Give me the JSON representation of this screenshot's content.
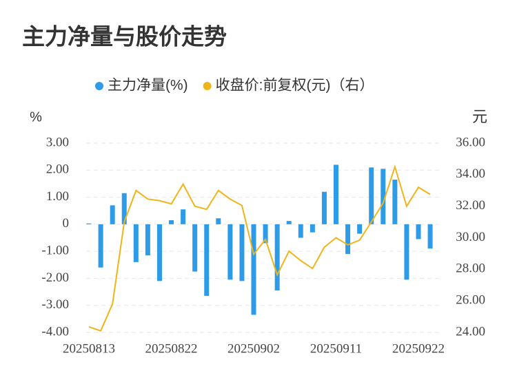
{
  "chart_data": {
    "type": "bar",
    "title": "主力净量与股价走势",
    "y_label": "%",
    "y2_label": "元",
    "categories": [
      "20250813",
      null,
      null,
      null,
      null,
      null,
      null,
      "20250822",
      null,
      null,
      null,
      null,
      null,
      null,
      "20250902",
      null,
      null,
      null,
      null,
      null,
      null,
      "20250911",
      null,
      null,
      null,
      null,
      null,
      null,
      "20250922",
      null
    ],
    "series": [
      {
        "name": "主力净量(%)",
        "type": "bar",
        "color": "#2e9be8",
        "values": [
          0.03,
          -1.6,
          0.7,
          1.15,
          -1.4,
          -1.15,
          -2.1,
          0.15,
          0.55,
          -1.75,
          -2.65,
          0.22,
          -2.05,
          -2.1,
          -3.35,
          -0.7,
          -2.45,
          0.12,
          -0.5,
          -0.3,
          1.2,
          2.2,
          -1.1,
          -0.35,
          2.1,
          2.05,
          1.65,
          -2.05,
          -0.55,
          -0.9
        ]
      },
      {
        "name": "收盘价:前复权(元)（右）",
        "type": "line",
        "axis": "y2",
        "color": "#f0b418",
        "values": [
          24.35,
          24.1,
          25.8,
          31.0,
          33.0,
          32.45,
          32.35,
          32.15,
          33.4,
          32.0,
          31.8,
          33.0,
          32.45,
          32.05,
          28.95,
          29.9,
          27.65,
          29.15,
          28.55,
          28.05,
          29.4,
          30.0,
          29.55,
          29.85,
          31.0,
          32.2,
          34.5,
          32.0,
          33.2,
          32.75
        ]
      }
    ],
    "ylim": [
      -4,
      3
    ],
    "yticks": [
      {
        "value": -4,
        "label": "-4.00"
      },
      {
        "value": -3,
        "label": "-3.00"
      },
      {
        "value": -2,
        "label": "-2.00"
      },
      {
        "value": -1,
        "label": "-1.00"
      },
      0,
      {
        "value": 1,
        "label": "1.00"
      },
      {
        "value": 2,
        "label": "2.00"
      },
      {
        "value": 3,
        "label": "3.00"
      }
    ],
    "y2lim": [
      24,
      36
    ],
    "y2ticks": [
      {
        "value": 24,
        "label": "24.00"
      },
      {
        "value": 26,
        "label": "26.00"
      },
      {
        "value": 28,
        "label": "28.00"
      },
      {
        "value": 30,
        "label": "30.00"
      },
      {
        "value": 32,
        "label": "32.00"
      },
      {
        "value": 34,
        "label": "34.00"
      },
      {
        "value": 36,
        "label": "36.00"
      }
    ],
    "grid": true
  }
}
